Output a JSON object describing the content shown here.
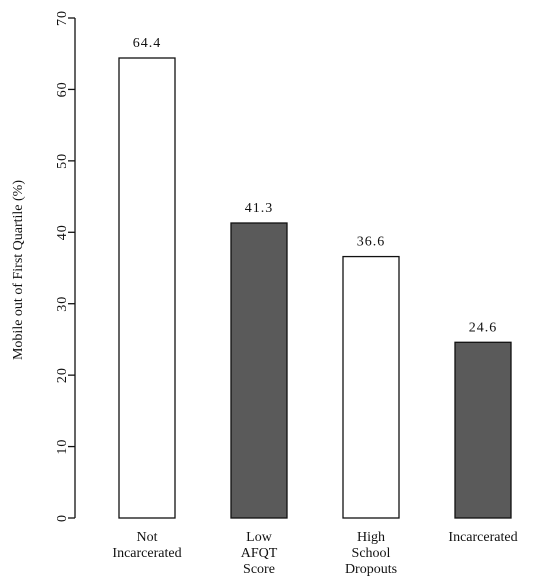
{
  "chart_data": {
    "type": "bar",
    "ylabel": "Mobile out of First Quartile (%)",
    "xlabel": "",
    "ylim": [
      0,
      70
    ],
    "yticks": [
      0,
      10,
      20,
      30,
      40,
      50,
      60,
      70
    ],
    "ytick_labels": [
      "0",
      "10",
      "20",
      "30",
      "40",
      "50",
      "60",
      "70"
    ],
    "categories": [
      [
        "Not",
        "Incarcerated"
      ],
      [
        "Low",
        "AFQT",
        "Score"
      ],
      [
        "High",
        "School",
        "Dropouts"
      ],
      [
        "Incarcerated"
      ]
    ],
    "values": [
      64.4,
      41.3,
      36.6,
      24.6
    ],
    "value_labels": [
      "64.4",
      "41.3",
      "36.6",
      "24.6"
    ],
    "bar_colors": [
      "#ffffff",
      "#5a5a5a",
      "#ffffff",
      "#5a5a5a"
    ],
    "bar_outline": "#111111",
    "grid": false
  }
}
